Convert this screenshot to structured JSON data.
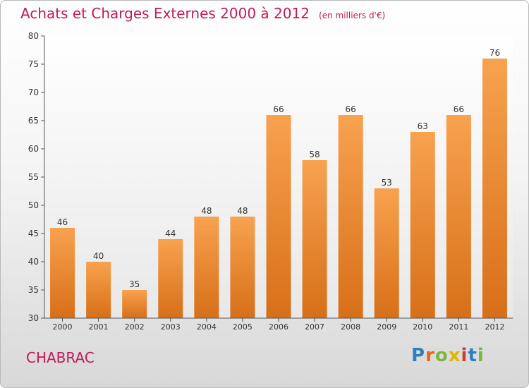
{
  "header": {
    "title": "Achats et Charges Externes 2000 à 2012",
    "unit": "(en milliers d'€)"
  },
  "footer": {
    "commune": "CHABRAC",
    "logo": {
      "letters": [
        {
          "ch": "P",
          "color": "#2e7fc0"
        },
        {
          "ch": "r",
          "color": "#e8651a"
        },
        {
          "ch": "o",
          "color": "#7ab83c"
        },
        {
          "ch": "x",
          "color": "#e0b400"
        },
        {
          "ch": "i",
          "color": "#d23b3b"
        },
        {
          "ch": "t",
          "color": "#2e7fc0"
        },
        {
          "ch": "i",
          "color": "#7ab83c"
        }
      ]
    }
  },
  "chart_data": {
    "type": "bar",
    "title": "Achats et Charges Externes 2000 à 2012",
    "categories": [
      "2000",
      "2001",
      "2002",
      "2003",
      "2004",
      "2005",
      "2006",
      "2007",
      "2008",
      "2009",
      "2010",
      "2011",
      "2012"
    ],
    "values": [
      46,
      40,
      35,
      44,
      48,
      48,
      66,
      58,
      66,
      53,
      63,
      66,
      76
    ],
    "ylim": [
      30,
      80
    ],
    "yticks": [
      30,
      35,
      40,
      45,
      50,
      55,
      60,
      65,
      70,
      75,
      80
    ],
    "grid": false,
    "bar_color": "#f0892e"
  }
}
